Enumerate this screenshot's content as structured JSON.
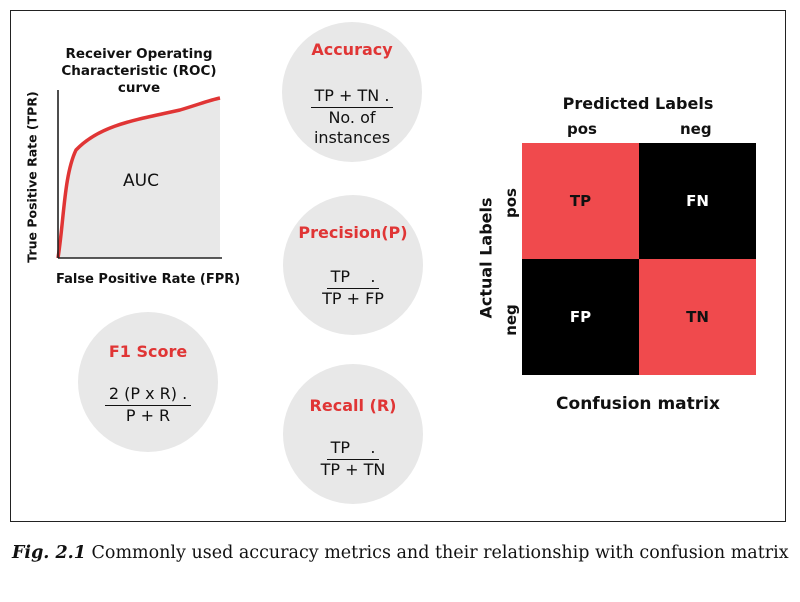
{
  "roc": {
    "title_line1": "Receiver Operating",
    "title_line2": "Characteristic (ROC) curve",
    "xlabel": "False Positive Rate (FPR)",
    "ylabel": "True Positive Rate (TPR)",
    "area_label": "AUC",
    "curve_color": "#e03535",
    "area_color": "#e8e8e8"
  },
  "metrics": {
    "accuracy": {
      "title": "Accuracy",
      "numerator": "TP + TN .",
      "denominator_line1": "No. of",
      "denominator_line2": "instances"
    },
    "precision": {
      "title": "Precision(P)",
      "numerator": "TP    .",
      "denominator_line1": "TP + FP"
    },
    "recall": {
      "title": "Recall (R)",
      "numerator": "TP    .",
      "denominator_line1": "TP + TN"
    },
    "f1": {
      "title": "F1 Score",
      "numerator": "2 (P x R) .",
      "denominator_line1": "P + R"
    }
  },
  "confusion_matrix": {
    "predicted_label": "Predicted Labels",
    "actual_label": "Actual Labels",
    "columns": [
      "pos",
      "neg"
    ],
    "rows": [
      "pos",
      "neg"
    ],
    "cells": {
      "tp": "TP",
      "fn": "FN",
      "fp": "FP",
      "tn": "TN"
    },
    "caption": "Confusion matrix",
    "colors": {
      "highlight": "#f04a4d",
      "dark": "#000000"
    }
  },
  "figure": {
    "label": "Fig. 2.1",
    "caption": " Commonly used accuracy metrics and their relationship with confusion matrix"
  }
}
